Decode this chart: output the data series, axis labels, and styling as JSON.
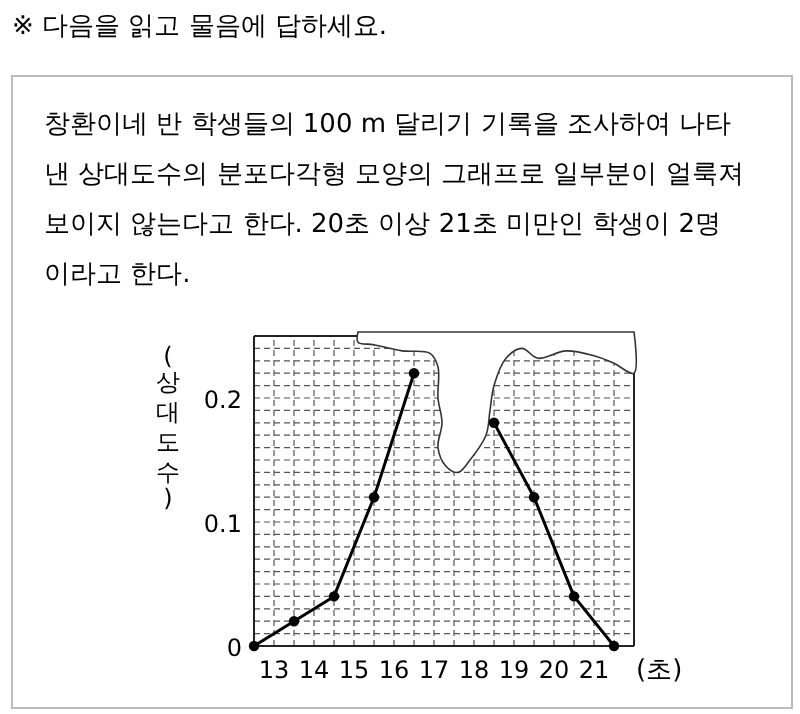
{
  "chart_data": {
    "type": "line",
    "title": "※ 다음을 읽고 물음에 답하세요.",
    "annotations": [
      "창환이네 반 학생들의 100 m  달리기 기록을 조사하여 나타",
      "낸 상대도수의 분포다각형 모양의 그래프로 일부분이 얼룩져",
      "보이지 않는다고 한다. 20초 이상 21초 미만인 학생이 2명",
      "이라고 한다."
    ],
    "xlabel": "(초)",
    "ylabel": "(상대도수)",
    "x": [
      12.5,
      13.5,
      14.5,
      15.5,
      16.5,
      17.5,
      18.5,
      19.5,
      20.5,
      21.5
    ],
    "series": [
      {
        "color": "#000000",
        "values": [
          0,
          0.02,
          0.04,
          0.12,
          0.22,
          null,
          0.18,
          0.12,
          0.04,
          0
        ]
      }
    ],
    "xlim": [
      12.5,
      22
    ],
    "ylim": [
      0,
      0.25
    ],
    "xticks": [
      {
        "value": 12.5,
        "label": null
      },
      13,
      {
        "value": 13.5,
        "label": null
      },
      14,
      {
        "value": 14.5,
        "label": null
      },
      15,
      {
        "value": 15.5,
        "label": null
      },
      16,
      {
        "value": 16.5,
        "label": null
      },
      17,
      {
        "value": 17.5,
        "label": null
      },
      18,
      {
        "value": 18.5,
        "label": null
      },
      19,
      {
        "value": 19.5,
        "label": null
      },
      20,
      {
        "value": 20.5,
        "label": null
      },
      21,
      {
        "value": 21.5,
        "label": null
      }
    ],
    "yticks": [
      0,
      {
        "value": 0.01,
        "label": null
      },
      {
        "value": 0.02,
        "label": null
      },
      {
        "value": 0.03,
        "label": null
      },
      {
        "value": 0.04,
        "label": null
      },
      {
        "value": 0.05,
        "label": null
      },
      {
        "value": 0.06,
        "label": null
      },
      {
        "value": 0.07,
        "label": null
      },
      {
        "value": 0.08,
        "label": null
      },
      {
        "value": 0.09,
        "label": null
      },
      0.1,
      {
        "value": 0.11,
        "label": null
      },
      {
        "value": 0.12,
        "label": null
      },
      {
        "value": 0.13,
        "label": null
      },
      {
        "value": 0.14,
        "label": null
      },
      {
        "value": 0.15,
        "label": null
      },
      {
        "value": 0.16,
        "label": null
      },
      {
        "value": 0.17,
        "label": null
      },
      {
        "value": 0.18,
        "label": null
      },
      {
        "value": 0.19,
        "label": null
      },
      0.2,
      {
        "value": 0.21,
        "label": null
      },
      {
        "value": 0.22,
        "label": null
      },
      {
        "value": 0.23,
        "label": null
      },
      {
        "value": 0.24,
        "label": null
      },
      {
        "value": 0.25,
        "label": null
      }
    ],
    "grid": true,
    "marker": "circle",
    "line_style": "solid"
  }
}
